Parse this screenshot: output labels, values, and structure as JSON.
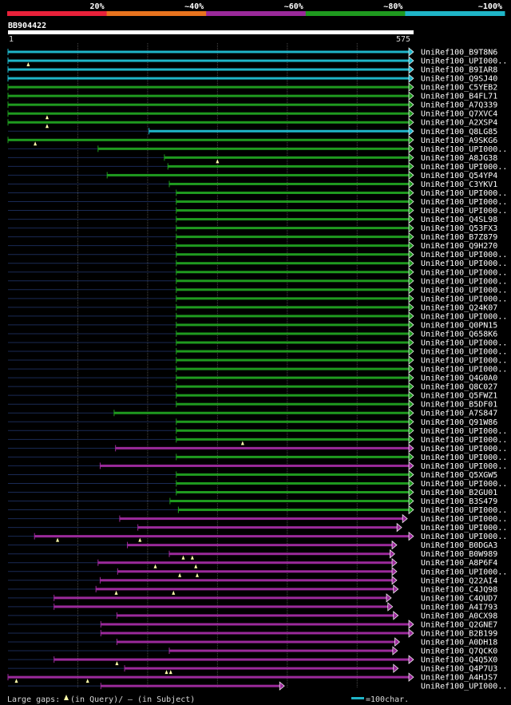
{
  "chart_data": {
    "type": "alignment",
    "query_id": "BB904422",
    "range_start": "1",
    "range_end": "575",
    "identity_legend": [
      {
        "label": "20%",
        "color": "#e8213a"
      },
      {
        "label": "~40%",
        "color": "#e8731e"
      },
      {
        "label": "~60%",
        "color": "#9b2a9b"
      },
      {
        "label": "~80%",
        "color": "#1f9a1f"
      },
      {
        "label": "~100%",
        "color": "#1fb5c8"
      }
    ],
    "footer": {
      "gaps_text": "Large gaps:",
      "query_gap_text": "(in Query)/",
      "subject_gap_text": "– (in Subject)",
      "scale_text": "=100char."
    },
    "hits": [
      {
        "id": "UniRef100_B9T8N6",
        "start": 1,
        "end": 575,
        "color": "cyan",
        "q_gaps": []
      },
      {
        "id": "UniRef100_UPI000..",
        "start": 1,
        "end": 575,
        "color": "cyan",
        "q_gaps": [
          30
        ]
      },
      {
        "id": "UniRef100_B9IAR8",
        "start": 1,
        "end": 575,
        "color": "cyan",
        "q_gaps": []
      },
      {
        "id": "UniRef100_Q9SJ40",
        "start": 1,
        "end": 575,
        "color": "cyan",
        "q_gaps": []
      },
      {
        "id": "UniRef100_C5YEB2",
        "start": 1,
        "end": 575,
        "color": "green",
        "q_gaps": []
      },
      {
        "id": "UniRef100_B4FL71",
        "start": 1,
        "end": 575,
        "color": "green",
        "q_gaps": []
      },
      {
        "id": "UniRef100_A7Q339",
        "start": 1,
        "end": 575,
        "color": "green",
        "q_gaps": []
      },
      {
        "id": "UniRef100_Q7XVC4",
        "start": 1,
        "end": 575,
        "color": "green",
        "q_gaps": [
          57
        ]
      },
      {
        "id": "UniRef100_A2XSP4",
        "start": 1,
        "end": 575,
        "color": "green",
        "q_gaps": [
          57
        ]
      },
      {
        "id": "UniRef100_Q8LG85",
        "start": 203,
        "end": 575,
        "color": "cyan",
        "q_gaps": []
      },
      {
        "id": "UniRef100_A9SKG6",
        "start": 1,
        "end": 575,
        "color": "green",
        "q_gaps": [
          40
        ]
      },
      {
        "id": "UniRef100_UPI000..",
        "start": 130,
        "end": 575,
        "color": "green",
        "q_gaps": []
      },
      {
        "id": "UniRef100_A8JG38",
        "start": 225,
        "end": 575,
        "color": "green",
        "q_gaps": [
          301
        ]
      },
      {
        "id": "UniRef100_UPI000..",
        "start": 230,
        "end": 575,
        "color": "green",
        "q_gaps": []
      },
      {
        "id": "UniRef100_Q54YP4",
        "start": 143,
        "end": 575,
        "color": "green",
        "q_gaps": []
      },
      {
        "id": "UniRef100_C3YKV1",
        "start": 232,
        "end": 575,
        "color": "green",
        "q_gaps": []
      },
      {
        "id": "UniRef100_UPI000..",
        "start": 242,
        "end": 575,
        "color": "green",
        "q_gaps": []
      },
      {
        "id": "UniRef100_UPI000..",
        "start": 242,
        "end": 575,
        "color": "green",
        "q_gaps": []
      },
      {
        "id": "UniRef100_UPI000..",
        "start": 242,
        "end": 575,
        "color": "green",
        "q_gaps": []
      },
      {
        "id": "UniRef100_Q4SL98",
        "start": 242,
        "end": 575,
        "color": "green",
        "q_gaps": []
      },
      {
        "id": "UniRef100_Q53FX3",
        "start": 242,
        "end": 575,
        "color": "green",
        "q_gaps": []
      },
      {
        "id": "UniRef100_B7Z879",
        "start": 242,
        "end": 575,
        "color": "green",
        "q_gaps": []
      },
      {
        "id": "UniRef100_Q9H270",
        "start": 242,
        "end": 575,
        "color": "green",
        "q_gaps": []
      },
      {
        "id": "UniRef100_UPI000..",
        "start": 242,
        "end": 575,
        "color": "green",
        "q_gaps": []
      },
      {
        "id": "UniRef100_UPI000..",
        "start": 242,
        "end": 575,
        "color": "green",
        "q_gaps": []
      },
      {
        "id": "UniRef100_UPI000..",
        "start": 242,
        "end": 575,
        "color": "green",
        "q_gaps": []
      },
      {
        "id": "UniRef100_UPI000..",
        "start": 242,
        "end": 575,
        "color": "green",
        "q_gaps": []
      },
      {
        "id": "UniRef100_UPI000..",
        "start": 242,
        "end": 575,
        "color": "green",
        "q_gaps": []
      },
      {
        "id": "UniRef100_UPI000..",
        "start": 242,
        "end": 575,
        "color": "green",
        "q_gaps": []
      },
      {
        "id": "UniRef100_Q24K07",
        "start": 242,
        "end": 575,
        "color": "green",
        "q_gaps": []
      },
      {
        "id": "UniRef100_UPI000..",
        "start": 242,
        "end": 575,
        "color": "green",
        "q_gaps": []
      },
      {
        "id": "UniRef100_Q0PN15",
        "start": 242,
        "end": 575,
        "color": "green",
        "q_gaps": []
      },
      {
        "id": "UniRef100_Q658K6",
        "start": 242,
        "end": 575,
        "color": "green",
        "q_gaps": []
      },
      {
        "id": "UniRef100_UPI000..",
        "start": 242,
        "end": 575,
        "color": "green",
        "q_gaps": []
      },
      {
        "id": "UniRef100_UPI000..",
        "start": 242,
        "end": 575,
        "color": "green",
        "q_gaps": []
      },
      {
        "id": "UniRef100_UPI000..",
        "start": 242,
        "end": 575,
        "color": "green",
        "q_gaps": []
      },
      {
        "id": "UniRef100_UPI000..",
        "start": 242,
        "end": 575,
        "color": "green",
        "q_gaps": []
      },
      {
        "id": "UniRef100_Q4G0A0",
        "start": 242,
        "end": 575,
        "color": "green",
        "q_gaps": []
      },
      {
        "id": "UniRef100_Q8C027",
        "start": 242,
        "end": 575,
        "color": "green",
        "q_gaps": []
      },
      {
        "id": "UniRef100_Q5FWZ1",
        "start": 242,
        "end": 575,
        "color": "green",
        "q_gaps": []
      },
      {
        "id": "UniRef100_B5DF01",
        "start": 242,
        "end": 575,
        "color": "green",
        "q_gaps": []
      },
      {
        "id": "UniRef100_A7S847",
        "start": 153,
        "end": 575,
        "color": "green",
        "q_gaps": []
      },
      {
        "id": "UniRef100_Q91W86",
        "start": 242,
        "end": 575,
        "color": "green",
        "q_gaps": []
      },
      {
        "id": "UniRef100_UPI000..",
        "start": 242,
        "end": 575,
        "color": "green",
        "q_gaps": []
      },
      {
        "id": "UniRef100_UPI000..",
        "start": 242,
        "end": 575,
        "color": "green",
        "q_gaps": [
          337
        ]
      },
      {
        "id": "UniRef100_UPI000..",
        "start": 155,
        "end": 575,
        "color": "magenta",
        "q_gaps": []
      },
      {
        "id": "UniRef100_UPI000..",
        "start": 242,
        "end": 575,
        "color": "green",
        "q_gaps": []
      },
      {
        "id": "UniRef100_UPI000..",
        "start": 133,
        "end": 575,
        "color": "magenta",
        "q_gaps": []
      },
      {
        "id": "UniRef100_Q5XGW5",
        "start": 242,
        "end": 575,
        "color": "green",
        "q_gaps": []
      },
      {
        "id": "UniRef100_UPI000..",
        "start": 242,
        "end": 575,
        "color": "green",
        "q_gaps": []
      },
      {
        "id": "UniRef100_B2GU01",
        "start": 242,
        "end": 575,
        "color": "green",
        "q_gaps": []
      },
      {
        "id": "UniRef100_B3S479",
        "start": 233,
        "end": 575,
        "color": "green",
        "q_gaps": []
      },
      {
        "id": "UniRef100_UPI000..",
        "start": 245,
        "end": 575,
        "color": "green",
        "q_gaps": []
      },
      {
        "id": "UniRef100_UPI000..",
        "start": 161,
        "end": 566,
        "color": "magenta",
        "q_gaps": []
      },
      {
        "id": "UniRef100_UPI000..",
        "start": 187,
        "end": 558,
        "color": "magenta",
        "q_gaps": []
      },
      {
        "id": "UniRef100_UPI000..",
        "start": 39,
        "end": 575,
        "color": "magenta",
        "q_gaps": [
          72,
          190
        ]
      },
      {
        "id": "UniRef100_B0DGA3",
        "start": 172,
        "end": 551,
        "color": "magenta",
        "q_gaps": []
      },
      {
        "id": "UniRef100_B0W989",
        "start": 232,
        "end": 548,
        "color": "magenta",
        "q_gaps": [
          252,
          265
        ]
      },
      {
        "id": "UniRef100_A8P6F4",
        "start": 130,
        "end": 551,
        "color": "magenta",
        "q_gaps": [
          212,
          270
        ]
      },
      {
        "id": "UniRef100_UPI000..",
        "start": 158,
        "end": 551,
        "color": "magenta",
        "q_gaps": [
          247,
          272
        ]
      },
      {
        "id": "UniRef100_Q22AI4",
        "start": 133,
        "end": 551,
        "color": "magenta",
        "q_gaps": []
      },
      {
        "id": "UniRef100_C4JQ98",
        "start": 127,
        "end": 553,
        "color": "magenta",
        "q_gaps": [
          156,
          238
        ]
      },
      {
        "id": "UniRef100_C4QUD7",
        "start": 67,
        "end": 543,
        "color": "magenta",
        "q_gaps": []
      },
      {
        "id": "UniRef100_A4I793",
        "start": 67,
        "end": 545,
        "color": "magenta",
        "q_gaps": []
      },
      {
        "id": "UniRef100_A0CX98",
        "start": 157,
        "end": 553,
        "color": "magenta",
        "q_gaps": []
      },
      {
        "id": "UniRef100_Q2GNE7",
        "start": 134,
        "end": 575,
        "color": "magenta",
        "q_gaps": []
      },
      {
        "id": "UniRef100_B2B199",
        "start": 134,
        "end": 575,
        "color": "magenta",
        "q_gaps": []
      },
      {
        "id": "UniRef100_A0DH18",
        "start": 157,
        "end": 555,
        "color": "magenta",
        "q_gaps": []
      },
      {
        "id": "UniRef100_Q7QCK0",
        "start": 232,
        "end": 552,
        "color": "magenta",
        "q_gaps": []
      },
      {
        "id": "UniRef100_Q4Q5X0",
        "start": 67,
        "end": 575,
        "color": "magenta",
        "q_gaps": [
          157
        ]
      },
      {
        "id": "UniRef100_Q4P7U3",
        "start": 168,
        "end": 553,
        "color": "magenta",
        "q_gaps": [
          228,
          234
        ]
      },
      {
        "id": "UniRef100_A4HJS7",
        "start": 1,
        "end": 575,
        "color": "magenta",
        "q_gaps": [
          13,
          115
        ]
      },
      {
        "id": "UniRef100_UPI000..",
        "start": 134,
        "end": 390,
        "color": "magenta",
        "q_gaps": []
      }
    ]
  }
}
